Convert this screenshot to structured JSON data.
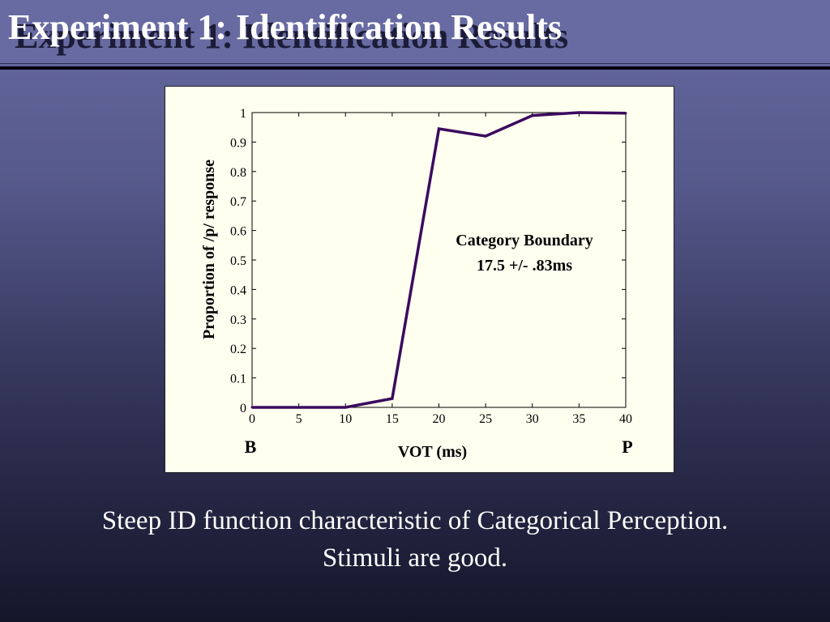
{
  "slide": {
    "title": "Experiment 1: Identification Results",
    "caption_line1": "Steep ID function characteristic of Categorical Perception.",
    "caption_line2": "Stimuli are good."
  },
  "colors": {
    "background_top": "#676aa0",
    "background_bottom": "#15152a",
    "panel": "#fffff0",
    "line": "#3b0a5e",
    "title_text": "#ffffff"
  },
  "chart_data": {
    "type": "line",
    "title": "",
    "xlabel": "VOT (ms)",
    "ylabel": "Proportion of /p/ response",
    "xlim": [
      0,
      40
    ],
    "ylim": [
      0,
      1
    ],
    "x_ticks": [
      0,
      5,
      10,
      15,
      20,
      25,
      30,
      35,
      40
    ],
    "y_ticks": [
      0,
      0.1,
      0.2,
      0.3,
      0.4,
      0.5,
      0.6,
      0.7,
      0.8,
      0.9,
      1
    ],
    "x_end_labels": {
      "left": "B",
      "right": "P"
    },
    "grid": false,
    "series": [
      {
        "x": [
          0,
          5,
          10,
          15,
          20,
          25,
          30,
          35,
          40
        ],
        "values": [
          0,
          0,
          0,
          0.03,
          0.945,
          0.92,
          0.99,
          1.0,
          0.998
        ]
      }
    ],
    "annotation": {
      "line1": "Category Boundary",
      "line2": "17.5 +/- .83ms"
    }
  }
}
